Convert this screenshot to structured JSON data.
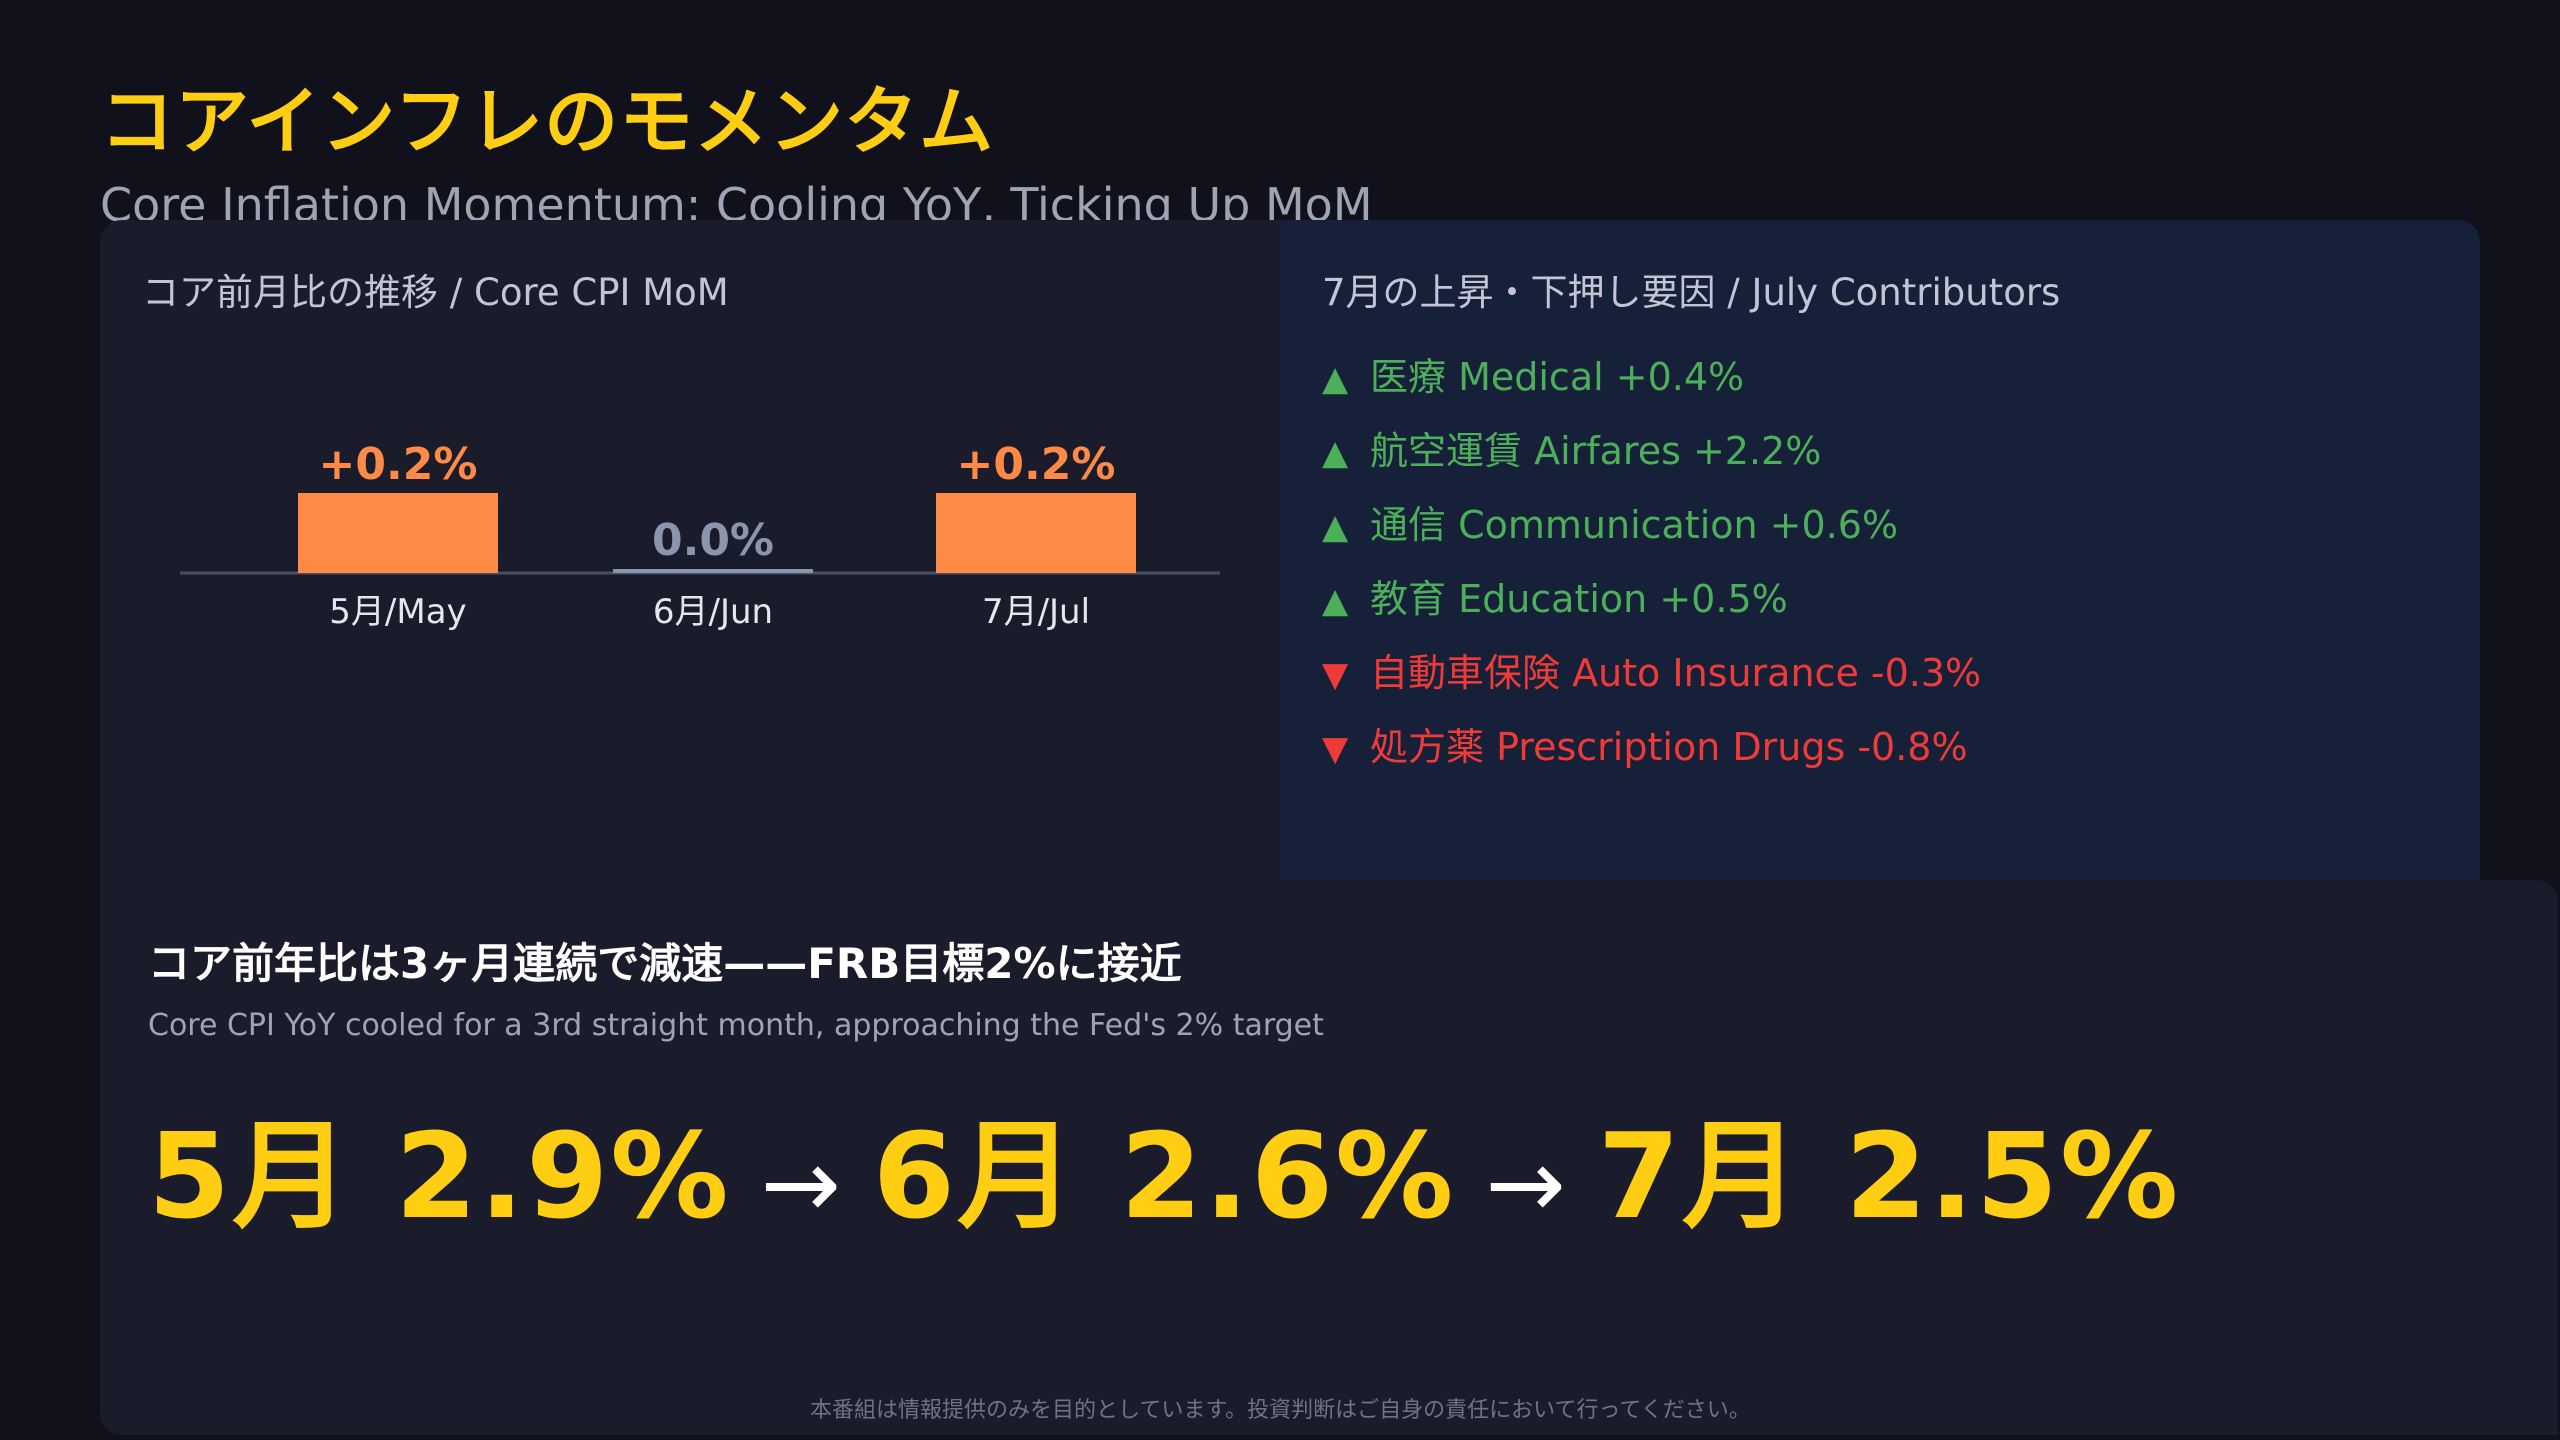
{
  "title": "コアインフレのモメンタム",
  "subtitle": "Core Inflation Momentum: Cooling YoY, Ticking Up MoM",
  "colors": {
    "accent": "#ffce12",
    "bar": "#ff8a45",
    "flat": "#8a95ae",
    "up": "#4caf5a",
    "down": "#ef3b37"
  },
  "chart_panel": {
    "title": "コア前月比の推移 / Core CPI MoM"
  },
  "chart_data": {
    "type": "bar",
    "title": "コア前月比の推移 / Core CPI MoM",
    "categories": [
      "5月/May",
      "6月/Jun",
      "7月/Jul"
    ],
    "values": [
      0.2,
      0.0,
      0.2
    ],
    "value_labels": [
      "+0.2%",
      "0.0%",
      "+0.2%"
    ],
    "xlabel": "",
    "ylabel": "",
    "grid": false,
    "legend": "none"
  },
  "contributors": {
    "title": "7月の上昇・下押し要因 / July Contributors",
    "items": [
      {
        "arrow": "▲",
        "text": "医療 Medical +0.4%",
        "direction": "up"
      },
      {
        "arrow": "▲",
        "text": "航空運賃 Airfares +2.2%",
        "direction": "up"
      },
      {
        "arrow": "▲",
        "text": "通信 Communication +0.6%",
        "direction": "up"
      },
      {
        "arrow": "▲",
        "text": "教育 Education +0.5%",
        "direction": "up"
      },
      {
        "arrow": "▼",
        "text": "自動車保険 Auto Insurance -0.3%",
        "direction": "down"
      },
      {
        "arrow": "▼",
        "text": "処方薬 Prescription Drugs -0.8%",
        "direction": "down"
      }
    ]
  },
  "summary": {
    "headline": "コア前年比は3ヶ月連続で減速——FRB目標2%に接近",
    "subline": "Core CPI YoY cooled for a 3rd straight month, approaching the Fed's 2% target",
    "trend": [
      {
        "label": "5月 2.9%"
      },
      {
        "label": "6月 2.6%"
      },
      {
        "label": "7月 2.5%"
      }
    ],
    "arrow": "→"
  },
  "disclaimer": "本番組は情報提供のみを目的としています。投資判断はご自身の責任において行ってください。"
}
